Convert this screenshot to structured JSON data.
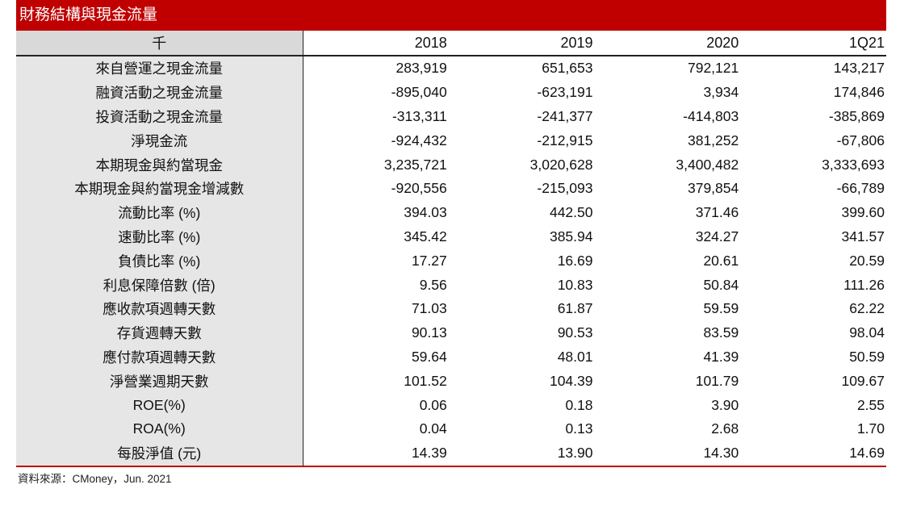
{
  "title": "財務結構與現金流量",
  "header": {
    "label": "千",
    "columns": [
      "2018",
      "2019",
      "2020",
      "1Q21"
    ]
  },
  "rows": [
    {
      "label": "來自營運之現金流量",
      "values": [
        "283,919",
        "651,653",
        "792,121",
        "143,217"
      ]
    },
    {
      "label": "融資活動之現金流量",
      "values": [
        "-895,040",
        "-623,191",
        "3,934",
        "174,846"
      ]
    },
    {
      "label": "投資活動之現金流量",
      "values": [
        "-313,311",
        "-241,377",
        "-414,803",
        "-385,869"
      ]
    },
    {
      "label": "淨現金流",
      "values": [
        "-924,432",
        "-212,915",
        "381,252",
        "-67,806"
      ]
    },
    {
      "label": "本期現金與約當現金",
      "values": [
        "3,235,721",
        "3,020,628",
        "3,400,482",
        "3,333,693"
      ]
    },
    {
      "label": "本期現金與約當現金增減數",
      "values": [
        "-920,556",
        "-215,093",
        "379,854",
        "-66,789"
      ]
    },
    {
      "label": "流動比率 (%)",
      "values": [
        "394.03",
        "442.50",
        "371.46",
        "399.60"
      ]
    },
    {
      "label": "速動比率 (%)",
      "values": [
        "345.42",
        "385.94",
        "324.27",
        "341.57"
      ]
    },
    {
      "label": "負債比率 (%)",
      "values": [
        "17.27",
        "16.69",
        "20.61",
        "20.59"
      ]
    },
    {
      "label": "利息保障倍數 (倍)",
      "values": [
        "9.56",
        "10.83",
        "50.84",
        "111.26"
      ]
    },
    {
      "label": "應收款項週轉天數",
      "values": [
        "71.03",
        "61.87",
        "59.59",
        "62.22"
      ]
    },
    {
      "label": "存貨週轉天數",
      "values": [
        "90.13",
        "90.53",
        "83.59",
        "98.04"
      ]
    },
    {
      "label": "應付款項週轉天數",
      "values": [
        "59.64",
        "48.01",
        "41.39",
        "50.59"
      ]
    },
    {
      "label": "淨營業週期天數",
      "values": [
        "101.52",
        "104.39",
        "101.79",
        "109.67"
      ]
    },
    {
      "label": "ROE(%)",
      "values": [
        "0.06",
        "0.18",
        "3.90",
        "2.55"
      ]
    },
    {
      "label": "ROA(%)",
      "values": [
        "0.04",
        "0.13",
        "2.68",
        "1.70"
      ]
    },
    {
      "label": "每股淨值 (元)",
      "values": [
        "14.39",
        "13.90",
        "14.30",
        "14.69"
      ]
    }
  ],
  "source": "資料來源：CMoney，Jun. 2021",
  "colors": {
    "accent": "#c00000",
    "label_bg": "#e6e6e6",
    "header_bg": "#d9d9d9"
  }
}
